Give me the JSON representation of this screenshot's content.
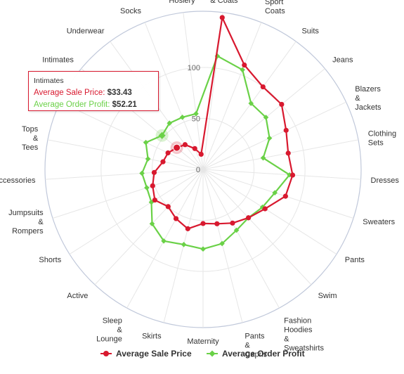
{
  "chart_data": {
    "type": "radar",
    "categories": [
      "Outerwear & Coats",
      "Suits & Sport Coats",
      "Suits",
      "Jeans",
      "Blazers & Jackets",
      "Clothing Sets",
      "Dresses",
      "Sweaters",
      "Pants",
      "Swim",
      "Fashion Hoodies & Sweatshirts",
      "Pants & Capris",
      "Maternity",
      "Skirts",
      "Sleep & Lounge",
      "Active",
      "Shorts",
      "Jumpsuits & Rompers",
      "Accessories",
      "Tops & Tees",
      "Plus",
      "Intimates",
      "Underwear",
      "Socks",
      "Socks & Hosiery"
    ],
    "label_lines": [
      [
        "Outerwear",
        "& Coats"
      ],
      [
        "Suits",
        "&",
        "Sport",
        "Coats"
      ],
      [
        "Suits"
      ],
      [
        "Jeans"
      ],
      [
        "Blazers",
        "&",
        "Jackets"
      ],
      [
        "Clothing",
        "Sets"
      ],
      [
        "Dresses"
      ],
      [
        "Sweaters"
      ],
      [
        "Pants"
      ],
      [
        "Swim"
      ],
      [
        "Fashion",
        "Hoodies",
        "&",
        "Sweatshirts"
      ],
      [
        "Pants",
        "&",
        "Capris"
      ],
      [
        "Maternity"
      ],
      [
        "Skirts"
      ],
      [
        "Sleep",
        "&",
        "Lounge"
      ],
      [
        "Active"
      ],
      [
        "Shorts"
      ],
      [
        "Jumpsuits",
        "&",
        "Rompers"
      ],
      [
        "Accessories"
      ],
      [
        "Tops",
        "&",
        "Tees"
      ],
      [
        "Plus"
      ],
      [
        "Intimates"
      ],
      [
        "Underwear"
      ],
      [
        "Socks"
      ],
      [
        "Socks",
        "&",
        "Hosiery"
      ]
    ],
    "series": [
      {
        "name": "Average Sale Price",
        "color": "#d8192f",
        "values": [
          150,
          110,
          100,
          100,
          90,
          85,
          88,
          85,
          72,
          65,
          60,
          55,
          53,
          60,
          55,
          50,
          56,
          52,
          48,
          40,
          38,
          33.43,
          30,
          22,
          15
        ]
      },
      {
        "name": "Average Order Profit",
        "color": "#6ad147",
        "values": [
          112,
          105,
          80,
          80,
          72,
          60,
          85,
          74,
          69,
          65,
          68,
          75,
          78,
          76,
          80,
          73,
          60,
          58,
          60,
          55,
          62,
          52.21,
          56,
          55,
          55
        ]
      }
    ],
    "yticks": [
      0,
      50,
      100
    ],
    "ymax": 155,
    "grid": "circle",
    "legend_position": "bottom-center",
    "tooltip": {
      "title": "Intimates",
      "rows": [
        {
          "label": "Average Sale Price:",
          "value": "$33.43"
        },
        {
          "label": "Average Order Profit:",
          "value": "$52.21"
        }
      ]
    },
    "highlight_category_index": 21
  }
}
